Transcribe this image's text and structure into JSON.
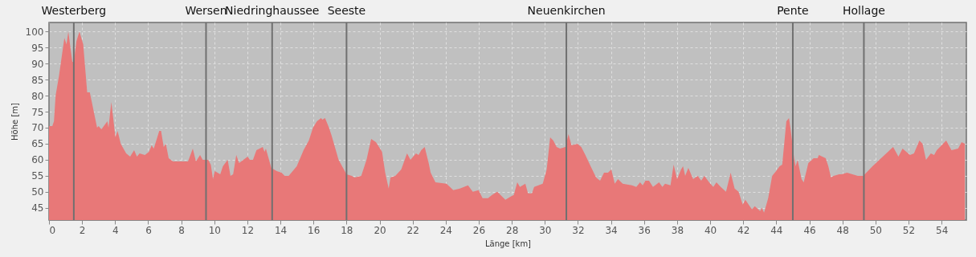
{
  "chart_data": {
    "type": "area",
    "xlabel": "Länge [km]",
    "ylabel": "Höhe [m]",
    "x": [
      0,
      0.2,
      0.3,
      0.4,
      0.6,
      0.93,
      1.06,
      1.17,
      1.41,
      1.5,
      1.66,
      1.84,
      2.07,
      2.31,
      2.47,
      2.91,
      3.0,
      3.17,
      3.53,
      3.6,
      3.77,
      4.02,
      4.15,
      4.34,
      4.67,
      4.91,
      5.15,
      5.32,
      5.48,
      5.8,
      6.05,
      6.21,
      6.34,
      6.67,
      6.78,
      6.94,
      7.07,
      7.24,
      7.5,
      8.41,
      8.7,
      8.89,
      9.14,
      9.3,
      9.63,
      9.79,
      9.92,
      10.03,
      10.36,
      10.52,
      10.81,
      10.98,
      11.14,
      11.33,
      11.5,
      12.02,
      12.15,
      12.34,
      12.55,
      12.93,
      13.04,
      13.12,
      13.45,
      13.77,
      14.07,
      14.26,
      14.5,
      14.99,
      15.4,
      15.72,
      15.97,
      16.21,
      16.46,
      16.54,
      16.7,
      16.94,
      17.1,
      17.52,
      18.0,
      18.32,
      18.48,
      18.89,
      19.21,
      19.49,
      19.78,
      20.15,
      20.34,
      20.55,
      20.66,
      20.95,
      21.31,
      21.66,
      21.87,
      22.2,
      22.36,
      22.52,
      22.73,
      22.97,
      23.09,
      23.38,
      24.05,
      24.46,
      24.86,
      25.35,
      25.64,
      25.99,
      26.23,
      26.56,
      26.8,
      27.12,
      27.61,
      27.93,
      28.12,
      28.33,
      28.49,
      28.82,
      28.98,
      29.22,
      29.35,
      29.87,
      30.11,
      30.32,
      30.51,
      30.71,
      30.92,
      31.24,
      31.43,
      31.61,
      31.97,
      32.2,
      32.45,
      32.77,
      33.1,
      33.34,
      33.58,
      33.82,
      34.02,
      34.23,
      34.42,
      34.71,
      35.27,
      35.53,
      35.76,
      35.92,
      36.08,
      36.3,
      36.54,
      36.91,
      37.11,
      37.27,
      37.6,
      37.79,
      38.0,
      38.24,
      38.36,
      38.49,
      38.68,
      38.97,
      39.25,
      39.46,
      39.65,
      39.94,
      40.19,
      40.38,
      40.64,
      40.96,
      41.24,
      41.48,
      41.72,
      41.97,
      42.13,
      42.53,
      42.7,
      43.02,
      43.13,
      43.26,
      43.51,
      43.75,
      43.99,
      44.2,
      44.36,
      44.61,
      44.77,
      44.88,
      45.08,
      45.17,
      45.29,
      45.53,
      45.66,
      45.94,
      46.26,
      46.5,
      46.58,
      46.99,
      47.15,
      47.31,
      47.47,
      47.8,
      47.96,
      48.28,
      48.61,
      48.93,
      49.26,
      49.82,
      51.07,
      51.39,
      51.64,
      52.09,
      52.33,
      52.66,
      52.85,
      53.06,
      53.35,
      53.55,
      53.71,
      54.28,
      54.6,
      55.0,
      55.21,
      55.41
    ],
    "series": [
      {
        "color": "#e87878",
        "values": [
          70.5,
          70.5,
          72,
          80,
          86,
          98,
          96,
          100,
          90.5,
          90.5,
          97,
          100,
          96,
          81,
          81,
          70,
          70.5,
          69.5,
          72,
          70,
          78,
          67,
          69,
          65,
          62,
          61,
          63,
          61,
          62,
          61.5,
          62.5,
          64.5,
          63.5,
          69,
          69,
          64,
          65,
          60.5,
          59.5,
          59.5,
          63.5,
          59.5,
          61.5,
          60,
          60,
          58.5,
          54,
          56.5,
          55.5,
          58,
          60,
          55,
          55.5,
          61.5,
          59,
          61,
          60,
          60,
          63,
          64,
          62.5,
          63.5,
          57.5,
          56.5,
          56,
          55,
          55,
          58,
          63,
          66,
          70,
          72,
          73,
          72.5,
          73,
          70,
          67.5,
          60,
          55.5,
          55,
          54.5,
          55,
          60,
          66.5,
          65.5,
          62.5,
          56,
          51,
          54.5,
          55,
          57,
          62,
          60,
          62,
          61.5,
          63,
          64,
          59,
          56,
          53,
          52.5,
          50.5,
          51,
          52,
          50,
          50.5,
          48,
          48,
          49,
          50,
          47.5,
          48.5,
          49,
          53,
          51.5,
          52.5,
          49.5,
          49.5,
          51.5,
          52.5,
          57,
          67,
          66,
          64,
          63.5,
          64,
          68,
          64.5,
          65,
          64,
          61.5,
          58,
          54.5,
          53.5,
          56,
          56,
          57,
          52.5,
          54,
          52.5,
          52,
          51.5,
          53,
          52,
          53.5,
          53.5,
          51.5,
          53,
          51.5,
          52.5,
          52,
          58.5,
          54,
          57,
          58,
          55,
          57.5,
          54,
          55,
          53.5,
          55,
          53,
          51.5,
          53,
          51.5,
          50,
          56,
          51,
          50,
          46,
          47.5,
          44.5,
          45.5,
          44,
          45,
          43.5,
          48,
          55,
          56.5,
          58,
          58.5,
          72,
          73,
          69,
          60.5,
          58,
          60,
          54,
          53,
          59,
          60.5,
          60.5,
          61.5,
          60.5,
          58,
          54.5,
          55,
          55.5,
          55.5,
          56,
          55.5,
          55,
          55,
          58,
          64,
          61,
          63.5,
          61.5,
          62,
          66,
          65,
          60,
          62,
          61.5,
          63,
          66,
          63,
          63.5,
          65.5,
          65
        ]
      }
    ],
    "xlim": [
      0,
      55.5
    ],
    "xticks": [
      0,
      2,
      4,
      6,
      8,
      10,
      12,
      14,
      16,
      18,
      20,
      22,
      24,
      26,
      28,
      30,
      32,
      34,
      36,
      38,
      40,
      42,
      44,
      46,
      48,
      50,
      52,
      54
    ],
    "ylim": [
      41.2,
      102.8
    ],
    "yticks": [
      45,
      50,
      55,
      60,
      65,
      70,
      75,
      80,
      85,
      90,
      95,
      100
    ],
    "grid": true,
    "ref_lines": [
      {
        "axis": "x",
        "value": 1.5,
        "label": "Westerberg",
        "color": "#707070"
      },
      {
        "axis": "x",
        "value": 9.5,
        "label": "Wersen",
        "color": "#707070"
      },
      {
        "axis": "x",
        "value": 13.5,
        "label": "Niedringhaussee",
        "color": "#707070"
      },
      {
        "axis": "x",
        "value": 18,
        "label": "Seeste",
        "color": "#707070"
      },
      {
        "axis": "x",
        "value": 31.3,
        "label": "Neuenkirchen",
        "color": "#707070"
      },
      {
        "axis": "x",
        "value": 45,
        "label": "Pente",
        "color": "#707070"
      },
      {
        "axis": "x",
        "value": 49.3,
        "label": "Hollage",
        "color": "#707070"
      }
    ]
  }
}
